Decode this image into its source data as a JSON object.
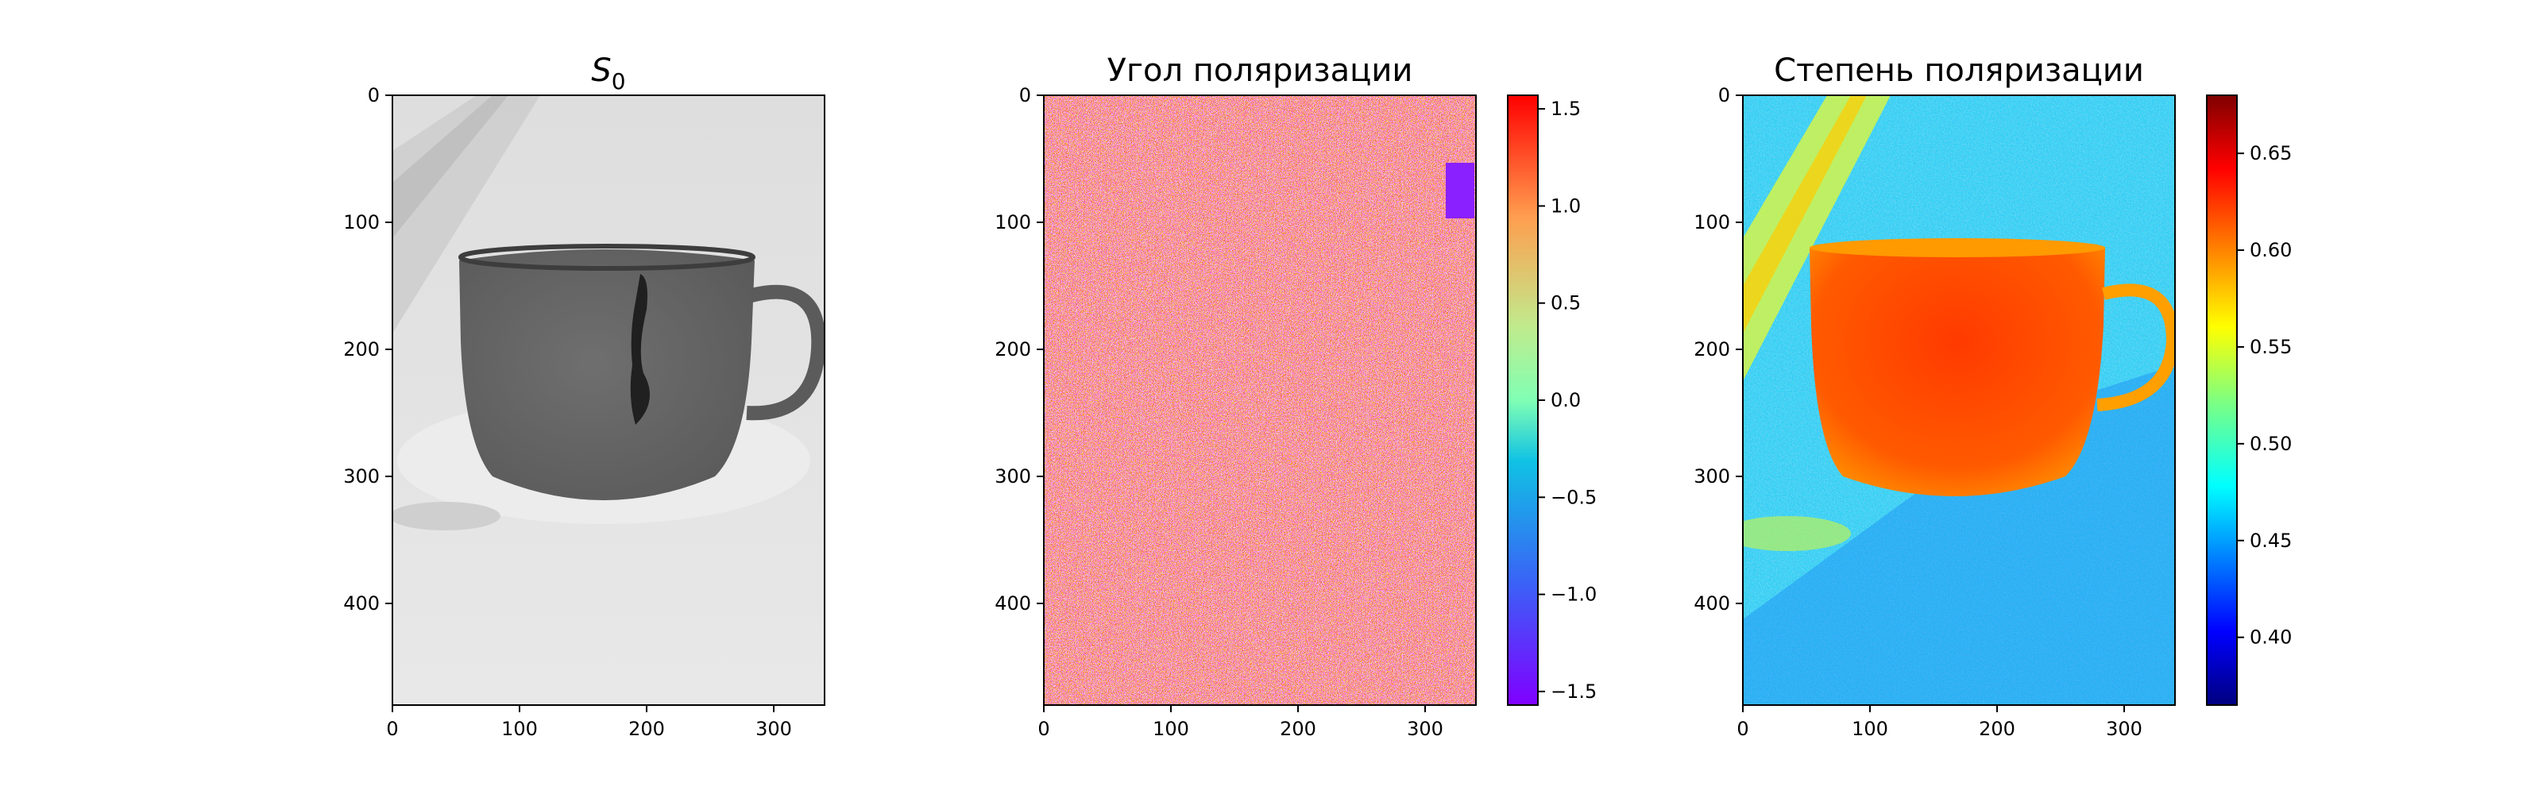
{
  "chart_data": [
    {
      "type": "heatmap",
      "title_main": "S",
      "title_subscript": "0",
      "colormap": "gray",
      "image_shape": [
        480,
        340
      ],
      "xlim": [
        0,
        340
      ],
      "ylim": [
        480,
        0
      ],
      "x_ticks": [
        0,
        100,
        200,
        300
      ],
      "y_ticks": [
        0,
        100,
        200,
        300,
        400
      ],
      "content": "grayscale intensity image of a cup (dark cup on light background)"
    },
    {
      "type": "heatmap",
      "title": "Угол поляризации",
      "colormap": "rainbow",
      "image_shape": [
        480,
        340
      ],
      "xlim": [
        0,
        340
      ],
      "ylim": [
        480,
        0
      ],
      "x_ticks": [
        0,
        100,
        200,
        300
      ],
      "y_ticks": [
        0,
        100,
        200,
        300,
        400
      ],
      "colorbar": {
        "range": [
          -1.57,
          1.57
        ],
        "ticks": [
          1.5,
          1.0,
          0.5,
          0.0,
          -0.5,
          -1.0,
          -1.5
        ],
        "tick_labels": [
          "1.5",
          "1.0",
          "0.5",
          "0.0",
          "−0.5",
          "−1.0",
          "−1.5"
        ]
      },
      "content": "noisy mix of red and purple pixels"
    },
    {
      "type": "heatmap",
      "title": "Степень поляризации",
      "colormap": "jet",
      "image_shape": [
        480,
        340
      ],
      "xlim": [
        0,
        340
      ],
      "ylim": [
        480,
        0
      ],
      "x_ticks": [
        0,
        100,
        200,
        300
      ],
      "y_ticks": [
        0,
        100,
        200,
        300,
        400
      ],
      "colorbar": {
        "range": [
          0.365,
          0.68
        ],
        "ticks": [
          0.65,
          0.6,
          0.55,
          0.5,
          0.45,
          0.4
        ],
        "tick_labels": [
          "0.65",
          "0.60",
          "0.55",
          "0.50",
          "0.45",
          "0.40"
        ]
      },
      "content": "cup region high (red/orange ~0.62), background ~0.47 (cyan), diagonal band high"
    }
  ]
}
